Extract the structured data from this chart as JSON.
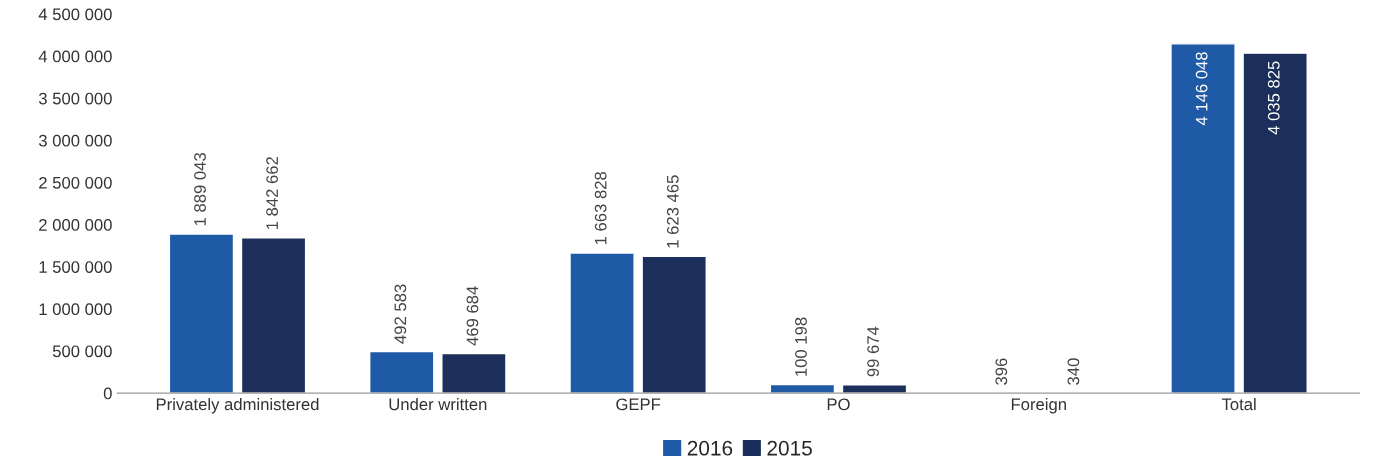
{
  "chart_data": {
    "type": "bar",
    "categories": [
      "Privately administered",
      "Under written",
      "GEPF",
      "PO",
      "Foreign",
      "Total"
    ],
    "series": [
      {
        "name": "2016",
        "color": "#1f5aa6",
        "values": [
          1889043,
          492583,
          1663828,
          100198,
          396,
          4146048
        ]
      },
      {
        "name": "2015",
        "color": "#1b2f5a",
        "values": [
          1842662,
          469684,
          1623465,
          99674,
          340,
          4035825
        ]
      }
    ],
    "ylim": [
      0,
      4500000
    ],
    "yticks": [
      {
        "value": 0,
        "label": "0"
      },
      {
        "value": 500000,
        "label": "500 000"
      },
      {
        "value": 1000000,
        "label": "1 000 000"
      },
      {
        "value": 1500000,
        "label": "1 500 000"
      },
      {
        "value": 2000000,
        "label": "2 000 000"
      },
      {
        "value": 2500000,
        "label": "2 500 000"
      },
      {
        "value": 3000000,
        "label": "3 000 000"
      },
      {
        "value": 3500000,
        "label": "3 500 000"
      },
      {
        "value": 4000000,
        "label": "4 000 000"
      },
      {
        "value": 4500000,
        "label": "4 500 000"
      }
    ],
    "value_labels": [
      [
        "1 889 043",
        "1 842 662"
      ],
      [
        "492 583",
        "469 684"
      ],
      [
        "1 663 828",
        "1 623 465"
      ],
      [
        "100 198",
        "99 674"
      ],
      [
        "396",
        "340"
      ],
      [
        "4 146 048",
        "4 035 825"
      ]
    ],
    "grid": false,
    "legend": "bottom"
  }
}
